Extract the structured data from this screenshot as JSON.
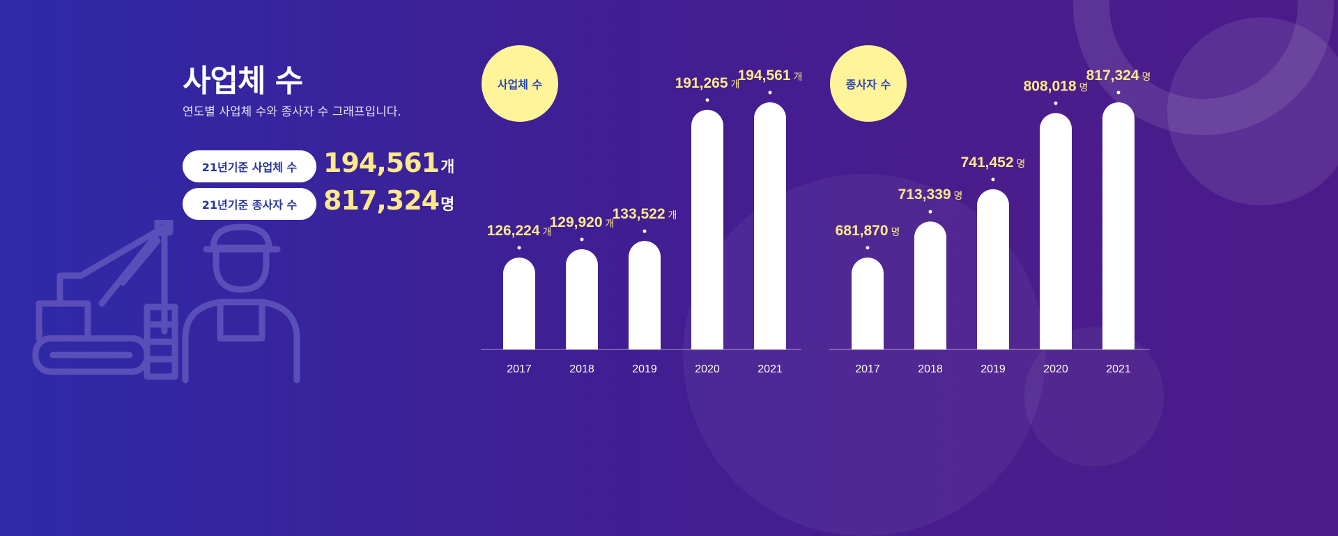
{
  "header": {
    "title": "사업체 수",
    "subtitle": "연도별 사업체 수와 종사자 수 그래프입니다."
  },
  "summary": [
    {
      "label": "21년기준 사업체 수",
      "value": "194,561",
      "unit": "개"
    },
    {
      "label": "21년기준 종사자 수",
      "value": "817,324",
      "unit": "명"
    }
  ],
  "illustration": {
    "icons": [
      "crane-icon",
      "worker-icon"
    ]
  },
  "colors": {
    "accent": "#ffe98a",
    "bar": "#ffffff",
    "badge": "#fff49a",
    "badge_text": "#2c47b3"
  },
  "chart_data": [
    {
      "type": "bar",
      "badge": "사업체 수",
      "categories": [
        "2017",
        "2018",
        "2019",
        "2020",
        "2021"
      ],
      "values": [
        126224,
        129920,
        133522,
        191265,
        194561
      ],
      "labels": [
        "126,224",
        "129,920",
        "133,522",
        "191,265",
        "194,561"
      ],
      "unit": "개",
      "grid": false
    },
    {
      "type": "bar",
      "badge": "종사자 수",
      "categories": [
        "2017",
        "2018",
        "2019",
        "2020",
        "2021"
      ],
      "values": [
        681870,
        713339,
        741452,
        808018,
        817324
      ],
      "labels": [
        "681,870",
        "713,339",
        "741,452",
        "808,018",
        "817,324"
      ],
      "unit": "명",
      "grid": false
    }
  ]
}
